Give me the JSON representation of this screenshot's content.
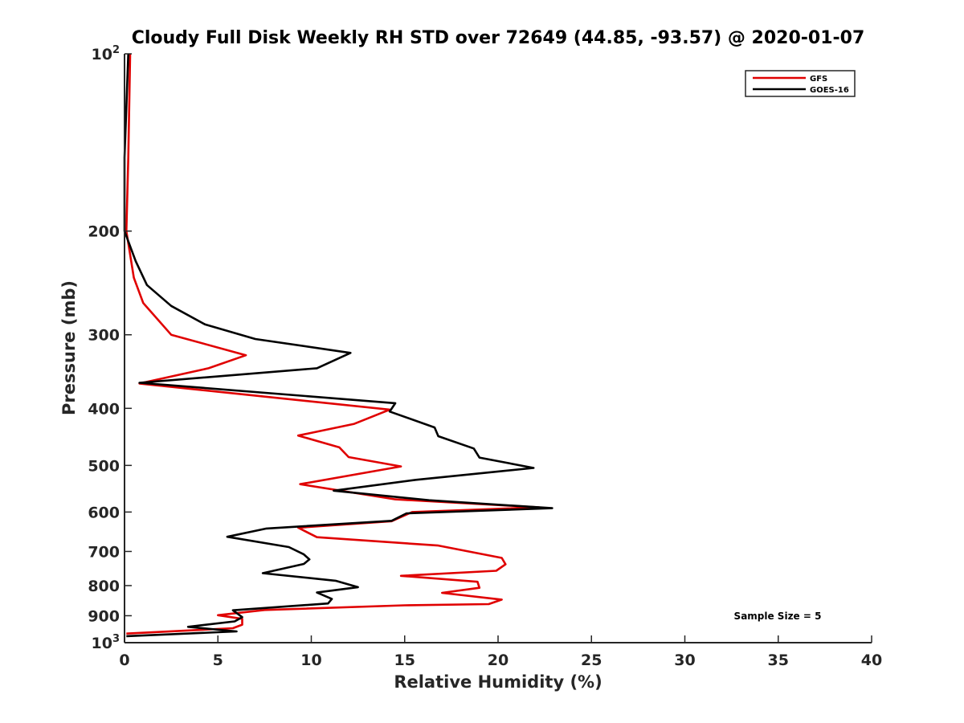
{
  "chart_data": {
    "type": "line",
    "title": "Cloudy Full Disk Weekly RH STD over 72649 (44.85, -93.57) @ 2020-01-07",
    "xlabel": "Relative Humidity (%)",
    "ylabel": "Pressure (mb)",
    "xlim": [
      0,
      40
    ],
    "ylim": [
      100,
      1000
    ],
    "y_scale": "log",
    "y_reversed": true,
    "grid": false,
    "legend_position": "top-right",
    "x_ticks": [
      0,
      5,
      10,
      15,
      20,
      25,
      30,
      35,
      40
    ],
    "y_ticks": [
      {
        "value": 100,
        "label": "10",
        "sup": "2"
      },
      {
        "value": 200,
        "label": "200",
        "sup": ""
      },
      {
        "value": 300,
        "label": "300",
        "sup": ""
      },
      {
        "value": 400,
        "label": "400",
        "sup": ""
      },
      {
        "value": 500,
        "label": "500",
        "sup": ""
      },
      {
        "value": 600,
        "label": "600",
        "sup": ""
      },
      {
        "value": 700,
        "label": "700",
        "sup": ""
      },
      {
        "value": 800,
        "label": "800",
        "sup": ""
      },
      {
        "value": 900,
        "label": "900",
        "sup": ""
      },
      {
        "value": 1000,
        "label": "10",
        "sup": "3"
      }
    ],
    "annotation": "Sample Size = 5",
    "series": [
      {
        "name": "GFS",
        "color": "#e00000",
        "points": [
          [
            0.3,
            100
          ],
          [
            0.2,
            150
          ],
          [
            0.1,
            200
          ],
          [
            0.5,
            240
          ],
          [
            1.0,
            265
          ],
          [
            2.5,
            300
          ],
          [
            6.5,
            325
          ],
          [
            4.5,
            342
          ],
          [
            0.8,
            363
          ],
          [
            14.2,
            402
          ],
          [
            12.3,
            425
          ],
          [
            9.3,
            445
          ],
          [
            11.5,
            466
          ],
          [
            12.0,
            484
          ],
          [
            14.8,
            502
          ],
          [
            9.4,
            538
          ],
          [
            14.5,
            571
          ],
          [
            22.2,
            589
          ],
          [
            15.4,
            600
          ],
          [
            14.3,
            622
          ],
          [
            9.3,
            638
          ],
          [
            10.3,
            662
          ],
          [
            16.8,
            684
          ],
          [
            20.2,
            718
          ],
          [
            20.4,
            736
          ],
          [
            19.9,
            755
          ],
          [
            14.8,
            770
          ],
          [
            18.9,
            788
          ],
          [
            19.0,
            807
          ],
          [
            17.0,
            823
          ],
          [
            20.2,
            845
          ],
          [
            19.5,
            860
          ],
          [
            15.0,
            864
          ],
          [
            7.5,
            880
          ],
          [
            5.0,
            898
          ],
          [
            6.3,
            911
          ],
          [
            6.3,
            932
          ],
          [
            5.8,
            945
          ],
          [
            0.1,
            965
          ]
        ]
      },
      {
        "name": "GOES-16",
        "color": "#000000",
        "points": [
          [
            0.2,
            100
          ],
          [
            0.0,
            150
          ],
          [
            0.0,
            200
          ],
          [
            0.6,
            225
          ],
          [
            1.2,
            247
          ],
          [
            2.5,
            268
          ],
          [
            4.3,
            288
          ],
          [
            7.0,
            305
          ],
          [
            12.1,
            322
          ],
          [
            10.3,
            342
          ],
          [
            0.8,
            362
          ],
          [
            14.5,
            392
          ],
          [
            14.2,
            405
          ],
          [
            16.6,
            431
          ],
          [
            16.8,
            446
          ],
          [
            18.7,
            468
          ],
          [
            19.0,
            485
          ],
          [
            21.9,
            505
          ],
          [
            15.6,
            529
          ],
          [
            11.2,
            552
          ],
          [
            16.3,
            573
          ],
          [
            22.9,
            591
          ],
          [
            15.1,
            603
          ],
          [
            14.3,
            621
          ],
          [
            7.6,
            640
          ],
          [
            5.5,
            661
          ],
          [
            8.8,
            688
          ],
          [
            9.6,
            708
          ],
          [
            9.9,
            722
          ],
          [
            9.6,
            735
          ],
          [
            7.4,
            762
          ],
          [
            11.3,
            785
          ],
          [
            12.5,
            805
          ],
          [
            10.3,
            822
          ],
          [
            11.1,
            843
          ],
          [
            10.9,
            858
          ],
          [
            5.8,
            881
          ],
          [
            6.3,
            905
          ],
          [
            5.9,
            920
          ],
          [
            3.4,
            940
          ],
          [
            6.0,
            957
          ],
          [
            0.1,
            975
          ]
        ]
      }
    ]
  }
}
